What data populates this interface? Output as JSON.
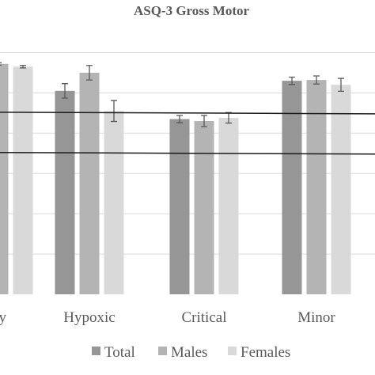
{
  "chart_data": {
    "type": "bar",
    "title": "ASQ-3 Gross Motor",
    "categories": [
      "Healthy",
      "Hypoxic",
      "Critical",
      "Minor"
    ],
    "category_labels_visible": [
      "y",
      "Hypoxic",
      "Critical",
      "Minor"
    ],
    "series": [
      {
        "name": "Total",
        "color": "#969696",
        "values": [
          57.0,
          50.5,
          43.5,
          53.0
        ],
        "errors": [
          0.5,
          1.8,
          0.9,
          0.9
        ]
      },
      {
        "name": "Males",
        "color": "#b4b4b4",
        "values": [
          57.2,
          55.0,
          43.0,
          53.2
        ],
        "errors": [
          0.3,
          1.8,
          1.4,
          1.0
        ]
      },
      {
        "name": "Females",
        "color": "#d9d9d9",
        "values": [
          56.5,
          45.5,
          43.8,
          52.0
        ],
        "errors": [
          0.3,
          2.6,
          1.3,
          1.6
        ]
      }
    ],
    "reference_lines": [
      45.0,
      35.0
    ],
    "ylim": [
      0,
      65
    ],
    "grid": true,
    "legend_position": "bottom"
  }
}
